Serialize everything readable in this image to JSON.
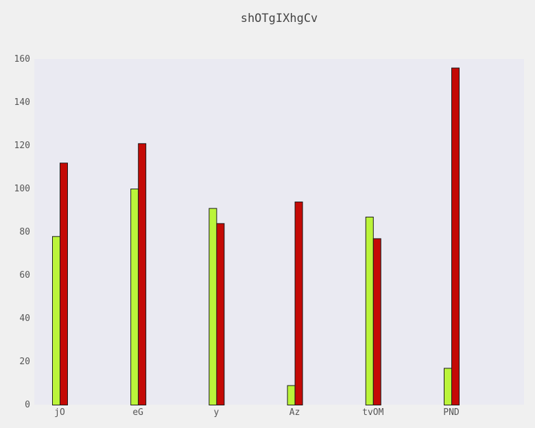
{
  "chart_data": {
    "type": "bar",
    "title": "shOTgIXhgCv",
    "xlabel": "",
    "ylabel": "",
    "categories": [
      "jO",
      "eG",
      "y",
      "Az",
      "tvOM",
      "PND"
    ],
    "series": [
      {
        "color": "#bbf43a",
        "values": [
          78,
          100,
          91,
          9,
          87,
          17
        ]
      },
      {
        "color": "#c40a06",
        "values": [
          112,
          121,
          84,
          94,
          77,
          156
        ]
      }
    ],
    "ylim": [
      0,
      160
    ],
    "yticks": [
      0,
      20,
      40,
      60,
      80,
      100,
      120,
      140,
      160
    ],
    "grid": false,
    "legend": "none",
    "colors": {
      "background": "#f0f0f0",
      "plot_background": "#eaeaf2",
      "bar_edge": "#1a1a1a"
    }
  }
}
